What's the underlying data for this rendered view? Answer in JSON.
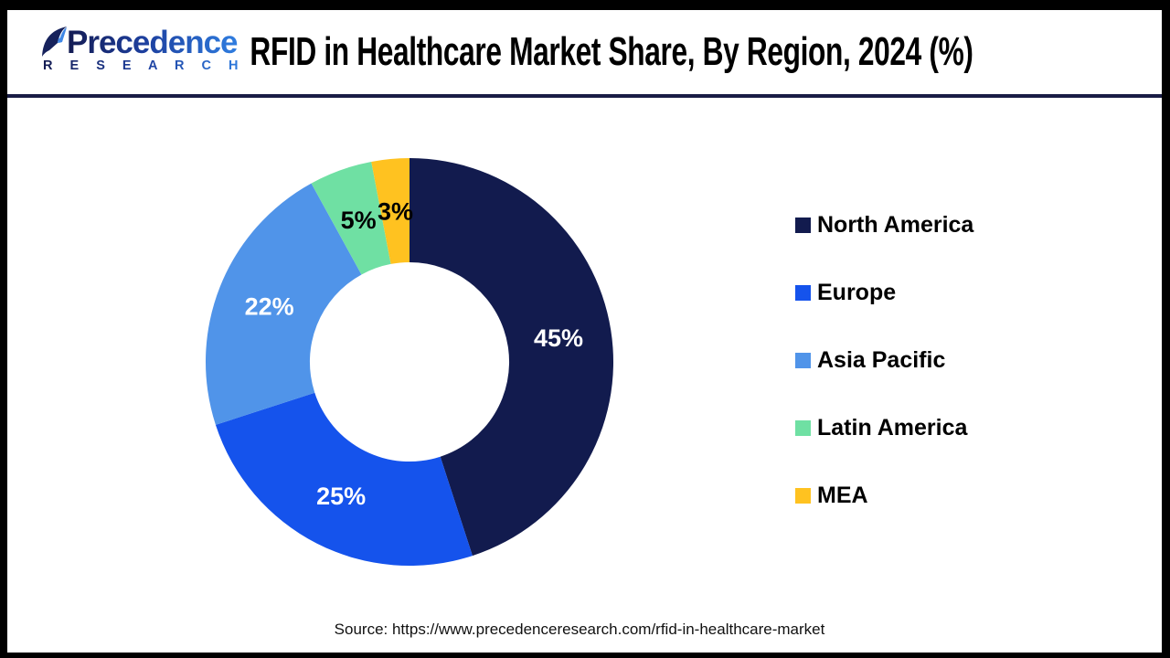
{
  "header": {
    "logo": {
      "name": "Precedence",
      "subname": "R E S E A R C H"
    },
    "title": "RFID in Healthcare Market Share, By Region, 2024 (%)"
  },
  "chart_data": {
    "type": "pie",
    "subtype": "donut",
    "title": "RFID in Healthcare Market Share, By Region, 2024 (%)",
    "start_angle_deg": 0,
    "direction": "clockwise",
    "inner_radius_ratio": 0.489,
    "value_suffix": "%",
    "legend_position": "right",
    "series": [
      {
        "label": "North America",
        "value": 45,
        "color": "#121B4E",
        "label_color": "#FFFFFF"
      },
      {
        "label": "Europe",
        "value": 25,
        "color": "#1553EC",
        "label_color": "#FFFFFF"
      },
      {
        "label": "Asia Pacific",
        "value": 22,
        "color": "#5094E9",
        "label_color": "#FFFFFF"
      },
      {
        "label": "Latin America",
        "value": 5,
        "color": "#6FE0A3",
        "label_color": "#000000"
      },
      {
        "label": "MEA",
        "value": 3,
        "color": "#FFC220",
        "label_color": "#000000"
      }
    ]
  },
  "footer": {
    "source": "Source: https://www.precedenceresearch.com/rfid-in-healthcare-market"
  },
  "colors": {
    "header_rule": "#191c45",
    "page_border": "#000000",
    "logo_gradient_start": "#141b52",
    "logo_gradient_end": "#2f7de0"
  }
}
